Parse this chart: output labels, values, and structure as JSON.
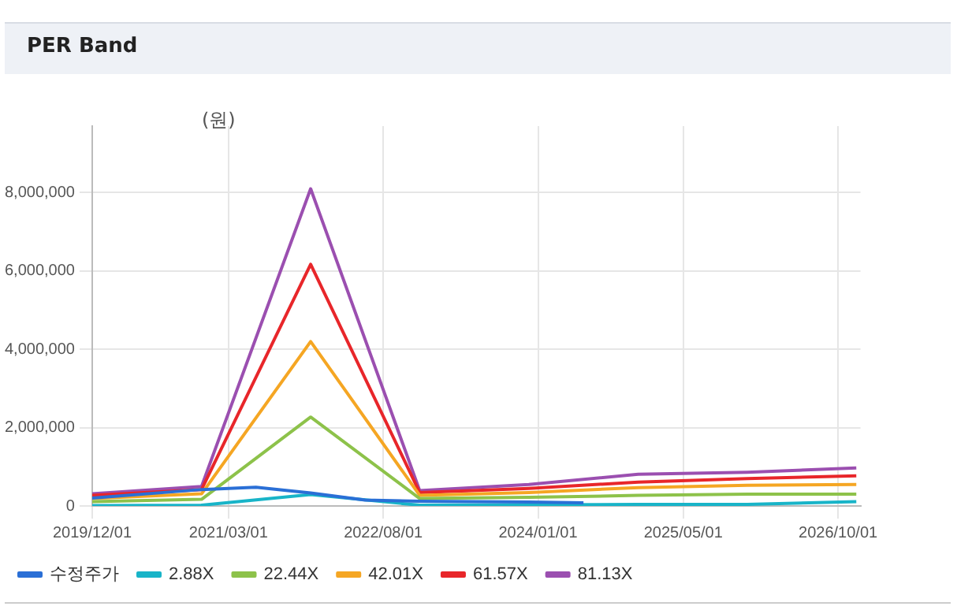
{
  "chart_data": {
    "type": "line",
    "title": "PER Band",
    "ylabel": "(원)",
    "x": [
      "2019-12-01",
      "2020-12-01",
      "2021-12-01",
      "2022-12-01",
      "2023-12-01",
      "2024-12-01",
      "2025-12-01",
      "2026-12-01"
    ],
    "series": [
      {
        "name": "수정주가",
        "color": "#2a6fd6",
        "x": [
          "2019-12-01",
          "2020-12-01",
          "2021-06-01",
          "2021-12-01",
          "2022-06-01",
          "2022-12-01",
          "2023-12-01",
          "2024-06-01"
        ],
        "values": [
          200000,
          420000,
          480000,
          330000,
          150000,
          120000,
          100000,
          80000
        ]
      },
      {
        "name": "2.88X",
        "color": "#18b4c8",
        "values": [
          10000,
          20000,
          290000,
          20000,
          30000,
          40000,
          40000,
          110000
        ]
      },
      {
        "name": "22.44X",
        "color": "#8dc24a",
        "values": [
          110000,
          170000,
          2270000,
          190000,
          220000,
          270000,
          300000,
          300000
        ]
      },
      {
        "name": "42.01X",
        "color": "#f5a623",
        "values": [
          190000,
          310000,
          4200000,
          270000,
          340000,
          470000,
          530000,
          550000
        ]
      },
      {
        "name": "61.57X",
        "color": "#e8262a",
        "values": [
          270000,
          420000,
          6170000,
          340000,
          450000,
          610000,
          700000,
          770000
        ]
      },
      {
        "name": "81.13X",
        "color": "#9b4fb0",
        "values": [
          310000,
          500000,
          8100000,
          390000,
          550000,
          810000,
          860000,
          970000
        ]
      }
    ],
    "xlim": [
      "2019-12-01",
      "2026-12-15"
    ],
    "xticks": [
      {
        "value": "2019-12-01",
        "label": "2019/12/01"
      },
      {
        "value": "2021-03-01",
        "label": "2021/03/01"
      },
      {
        "value": "2022-08-01",
        "label": "2022/08/01"
      },
      {
        "value": "2024-01-01",
        "label": "2024/01/01"
      },
      {
        "value": "2025-05-01",
        "label": "2025/05/01"
      },
      {
        "value": "2026-10-01",
        "label": "2026/10/01"
      }
    ],
    "ylim": [
      0,
      9700000
    ],
    "yticks": [
      {
        "value": 0,
        "label": "0"
      },
      {
        "value": 2000000,
        "label": "2,000,000"
      },
      {
        "value": 4000000,
        "label": "4,000,000"
      },
      {
        "value": 6000000,
        "label": "6,000,000"
      },
      {
        "value": 8000000,
        "label": "8,000,000"
      }
    ],
    "grid": true,
    "legend": "bottom",
    "marker": "none",
    "line_style": "solid"
  }
}
